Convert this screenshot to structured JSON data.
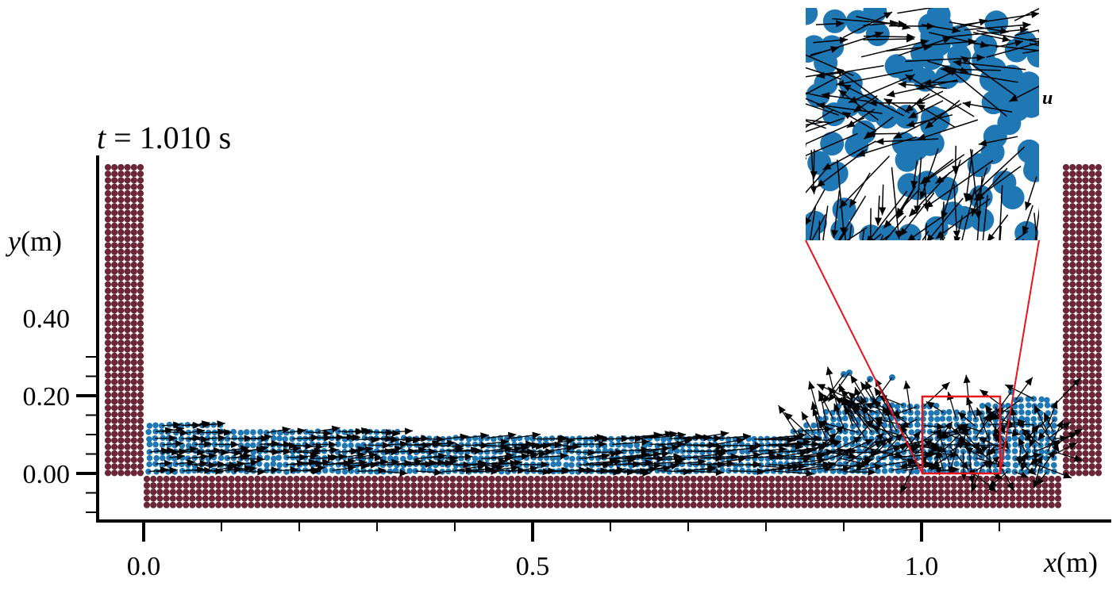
{
  "time_label": {
    "var": "t",
    "text": " = 1.010 s"
  },
  "axes": {
    "x": {
      "name": "x",
      "unit": "(m)",
      "ticks": [
        "0.0",
        "0.5",
        "1.0"
      ],
      "tick_values": [
        0.0,
        0.5,
        1.0
      ]
    },
    "y": {
      "name": "y",
      "unit": "(m)",
      "ticks": [
        "0.00",
        "0.20",
        "0.40"
      ],
      "tick_values": [
        0.0,
        0.2,
        0.4
      ]
    }
  },
  "inset": {
    "vector_label": "u"
  },
  "colors": {
    "wall": "#6b2737",
    "fluid": "#1f77b4",
    "arrow": "#000000",
    "zoom_box": "#e8141c"
  }
}
